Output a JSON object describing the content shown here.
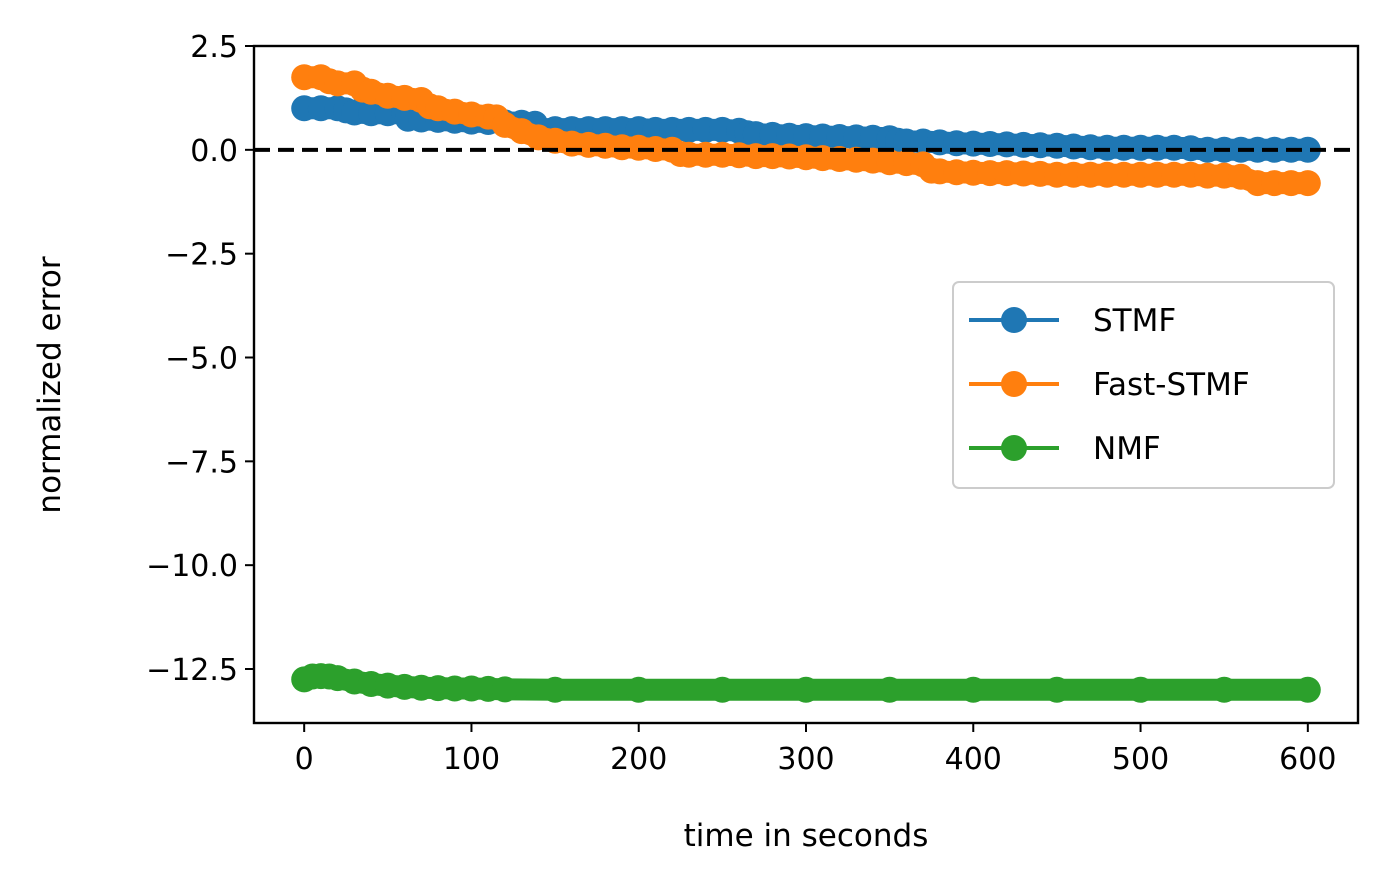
{
  "chart_data": {
    "type": "line",
    "title": "",
    "xlabel": "time in seconds",
    "ylabel": "normalized error",
    "xlim": [
      -30,
      630
    ],
    "ylim": [
      -13.8,
      2.5
    ],
    "xticks": [
      0,
      100,
      200,
      300,
      400,
      500,
      600
    ],
    "xtick_labels": [
      "0",
      "100",
      "200",
      "300",
      "400",
      "500",
      "600"
    ],
    "yticks": [
      2.5,
      0.0,
      -2.5,
      -5.0,
      -7.5,
      -10.0,
      -12.5
    ],
    "ytick_labels": [
      "2.5",
      "0.0",
      "−2.5",
      "−5.0",
      "−7.5",
      "−10.0",
      "−12.5"
    ],
    "grid": false,
    "legend_position": "center-right",
    "reference_line": {
      "y": 0.0,
      "style": "dashed",
      "color": "#000000"
    },
    "series": [
      {
        "name": "STMF",
        "color": "#1f77b4",
        "x": [
          0,
          10,
          20,
          25,
          30,
          40,
          50,
          60,
          62,
          70,
          80,
          90,
          100,
          110,
          120,
          130,
          138,
          140,
          150,
          160,
          170,
          180,
          190,
          200,
          210,
          220,
          230,
          240,
          250,
          260,
          265,
          270,
          280,
          290,
          300,
          310,
          320,
          330,
          340,
          350,
          355,
          360,
          370,
          380,
          390,
          400,
          410,
          420,
          430,
          440,
          450,
          460,
          470,
          480,
          490,
          500,
          510,
          520,
          530,
          540,
          550,
          560,
          570,
          580,
          590,
          600
        ],
        "y": [
          1.0,
          1.0,
          1.0,
          0.95,
          0.9,
          0.88,
          0.88,
          0.88,
          0.75,
          0.73,
          0.72,
          0.7,
          0.68,
          0.67,
          0.66,
          0.65,
          0.63,
          0.5,
          0.5,
          0.5,
          0.5,
          0.5,
          0.5,
          0.5,
          0.48,
          0.48,
          0.48,
          0.48,
          0.48,
          0.46,
          0.4,
          0.38,
          0.36,
          0.34,
          0.33,
          0.32,
          0.31,
          0.3,
          0.29,
          0.28,
          0.22,
          0.2,
          0.2,
          0.18,
          0.16,
          0.15,
          0.14,
          0.13,
          0.12,
          0.11,
          0.1,
          0.08,
          0.06,
          0.05,
          0.05,
          0.05,
          0.05,
          0.05,
          0.04,
          0.0,
          0.0,
          0.0,
          0.0,
          0.0,
          0.0,
          0.0
        ]
      },
      {
        "name": "Fast-STMF",
        "color": "#ff7f0e",
        "x": [
          0,
          10,
          15,
          20,
          30,
          35,
          40,
          50,
          60,
          70,
          75,
          80,
          90,
          100,
          110,
          115,
          120,
          130,
          140,
          150,
          160,
          170,
          180,
          190,
          200,
          210,
          220,
          225,
          230,
          240,
          250,
          260,
          270,
          280,
          290,
          300,
          310,
          320,
          330,
          340,
          350,
          360,
          370,
          375,
          380,
          390,
          400,
          410,
          420,
          430,
          440,
          450,
          460,
          470,
          480,
          490,
          500,
          510,
          520,
          530,
          540,
          550,
          560,
          570,
          580,
          590,
          600
        ],
        "y": [
          1.75,
          1.75,
          1.65,
          1.6,
          1.6,
          1.45,
          1.4,
          1.3,
          1.25,
          1.2,
          1.05,
          1.0,
          0.92,
          0.85,
          0.8,
          0.78,
          0.6,
          0.45,
          0.3,
          0.22,
          0.15,
          0.12,
          0.1,
          0.06,
          0.05,
          0.02,
          0.0,
          -0.1,
          -0.12,
          -0.12,
          -0.12,
          -0.13,
          -0.15,
          -0.15,
          -0.16,
          -0.18,
          -0.2,
          -0.22,
          -0.24,
          -0.26,
          -0.3,
          -0.32,
          -0.35,
          -0.5,
          -0.52,
          -0.54,
          -0.55,
          -0.56,
          -0.56,
          -0.57,
          -0.58,
          -0.6,
          -0.6,
          -0.6,
          -0.6,
          -0.6,
          -0.6,
          -0.6,
          -0.6,
          -0.6,
          -0.62,
          -0.62,
          -0.65,
          -0.8,
          -0.8,
          -0.8,
          -0.8
        ]
      },
      {
        "name": "NMF",
        "color": "#2ca02c",
        "x": [
          0,
          5,
          10,
          15,
          20,
          30,
          40,
          50,
          60,
          70,
          80,
          90,
          100,
          110,
          120,
          150,
          200,
          250,
          300,
          350,
          400,
          450,
          500,
          550,
          600
        ],
        "y": [
          -12.75,
          -12.68,
          -12.67,
          -12.68,
          -12.72,
          -12.8,
          -12.86,
          -12.9,
          -12.93,
          -12.95,
          -12.96,
          -12.97,
          -12.97,
          -12.98,
          -12.99,
          -13.0,
          -13.0,
          -13.0,
          -13.0,
          -13.0,
          -13.0,
          -13.0,
          -13.0,
          -13.0,
          -13.0
        ]
      }
    ]
  }
}
